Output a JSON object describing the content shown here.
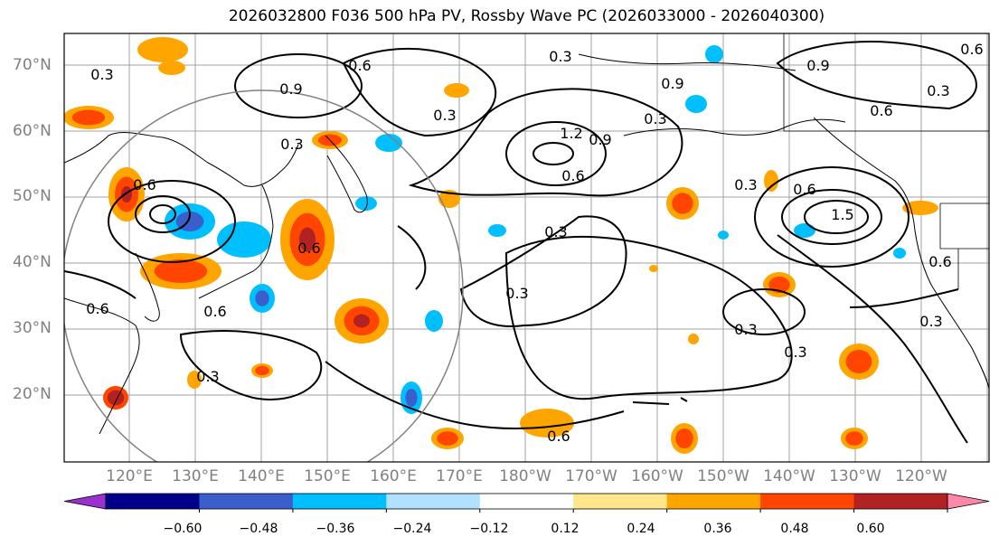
{
  "title": "2026032800 F036 500 hPa PV, Rossby Wave PC (2026033000 - 2026040300)",
  "lat_labels": [
    "70°N",
    "60°N",
    "50°N",
    "40°N",
    "30°N",
    "20°N"
  ],
  "lon_labels": [
    "120°E",
    "130°E",
    "140°E",
    "150°E",
    "160°E",
    "170°E",
    "180°W",
    "170°W",
    "160°W",
    "150°W",
    "140°W",
    "130°W",
    "120°W"
  ],
  "colorbar": {
    "colors": [
      "#9932CC",
      "#00008B",
      "#3A5FCD",
      "#00BFFF",
      "#B0E2FF",
      "#FFFFFF",
      "#FFE68A",
      "#FFA500",
      "#FF4500",
      "#B22222",
      "#FF88AA"
    ],
    "ticks": [
      "−0.60",
      "−0.48",
      "−0.36",
      "−0.24",
      "−0.12",
      "0.12",
      "0.24",
      "0.36",
      "0.48",
      "0.60"
    ]
  },
  "contour_labels": [
    "0.3",
    "0.6",
    "0.9",
    "0.3",
    "0.9",
    "1.2",
    "0.6",
    "0.3",
    "0.9",
    "0.6",
    "0.3",
    "0.9",
    "1.5",
    "0.3",
    "0.6",
    "0.6",
    "0.6",
    "0.6",
    "0.3",
    "0.3",
    "0.3",
    "0.6",
    "0.3",
    "0.3",
    "0.3",
    "0.6",
    "0.6",
    "0.3",
    "0.3",
    "0.6"
  ]
}
